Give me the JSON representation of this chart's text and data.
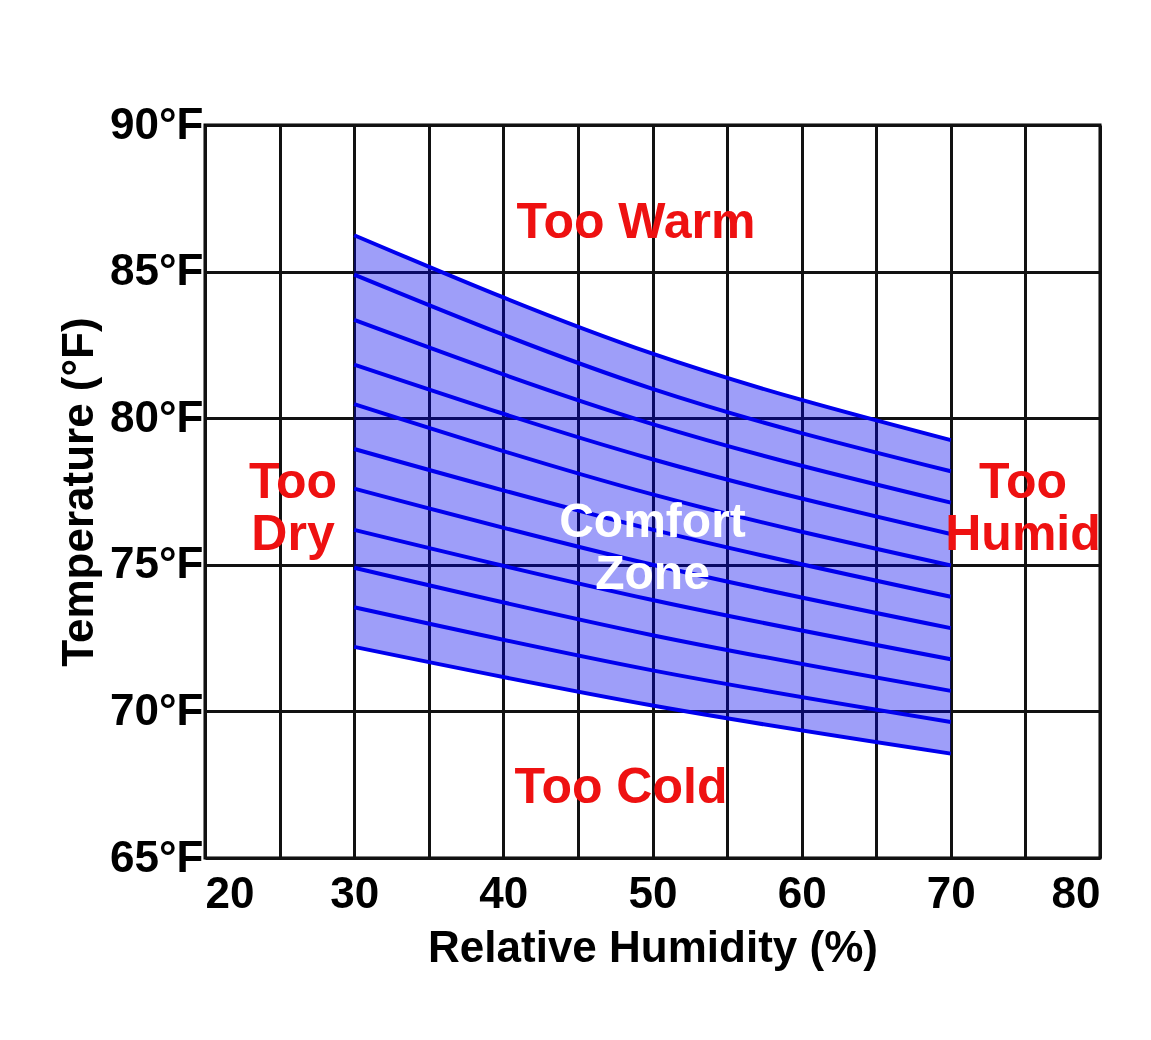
{
  "chart_data": {
    "type": "line",
    "xlabel": "Relative Humidity (%)",
    "ylabel": "Temperature (°F)",
    "x": [
      30,
      50,
      70
    ],
    "series": [
      {
        "name": "Comfort Zone",
        "color": "#0000ee",
        "values": [
          86.24,
          82.2,
          79.25
        ],
        "lower": [
          72.2,
          70.2,
          68.56
        ],
        "upper": [
          86.24,
          82.2,
          79.25
        ]
      },
      {
        "color": "#0000ee",
        "values": [
          84.9,
          81.0,
          78.19
        ]
      },
      {
        "color": "#0000ee",
        "values": [
          83.35,
          79.8,
          77.12
        ]
      },
      {
        "color": "#0000ee",
        "values": [
          81.83,
          78.6,
          76.05
        ]
      },
      {
        "color": "#0000ee",
        "values": [
          80.48,
          77.4,
          74.98
        ]
      },
      {
        "color": "#0000ee",
        "values": [
          78.95,
          76.2,
          73.91
        ]
      },
      {
        "color": "#0000ee",
        "values": [
          77.6,
          75.0,
          72.84
        ]
      },
      {
        "color": "#0000ee",
        "values": [
          76.19,
          73.8,
          71.78
        ]
      },
      {
        "color": "#0000ee",
        "values": [
          74.9,
          72.6,
          70.7
        ]
      },
      {
        "color": "#0000ee",
        "values": [
          73.55,
          71.4,
          69.64
        ]
      },
      {
        "color": "#0000ee",
        "values": [
          72.2,
          70.2,
          68.56
        ]
      }
    ],
    "xlim": [
      20,
      80
    ],
    "xticks": [
      20,
      {
        "value": 25,
        "label": null
      },
      30,
      {
        "value": 35,
        "label": null
      },
      40,
      {
        "value": 45,
        "label": null
      },
      50,
      {
        "value": 55,
        "label": null
      },
      60,
      {
        "value": 65,
        "label": null
      },
      70,
      {
        "value": 75,
        "label": null
      },
      80
    ],
    "ylim": [
      65,
      90
    ],
    "yticks": [
      {
        "value": 65,
        "label": "65°F"
      },
      {
        "value": 70,
        "label": "70°F"
      },
      {
        "value": 75,
        "label": "75°F"
      },
      {
        "value": 80,
        "label": "80°F"
      },
      {
        "value": 85,
        "label": "85°F"
      },
      {
        "value": 90,
        "label": "90°F"
      }
    ],
    "grid": true,
    "marker": "none",
    "line_style": "solid",
    "annotations": [
      "Too Warm",
      "Too\nDry",
      "Too\nHumid",
      "Too Cold"
    ]
  }
}
